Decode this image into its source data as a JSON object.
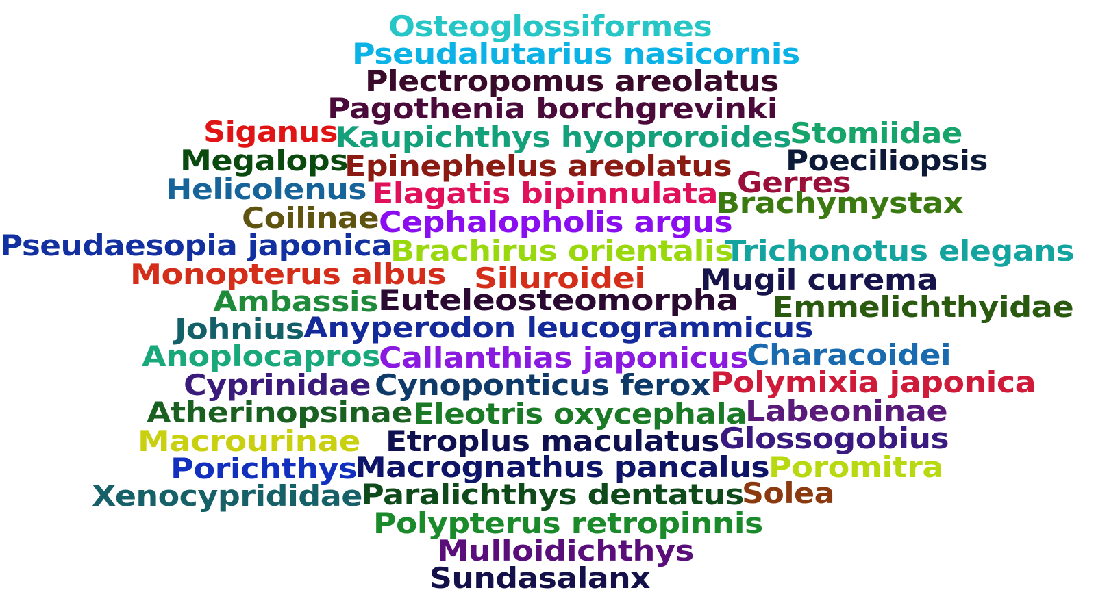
{
  "words": [
    {
      "text": "Osteoglossiformes",
      "color": "#26c6c6"
    },
    {
      "text": "Pseudalutarius nasicornis",
      "color": "#0bb2e6"
    },
    {
      "text": "Plectropomus areolatus",
      "color": "#3a0a2a"
    },
    {
      "text": "Pagothenia borchgrevinki",
      "color": "#4a0a3a"
    },
    {
      "text": "Siganus",
      "color": "#e01414"
    },
    {
      "text": "Kaupichthys hyoproroides",
      "color": "#14a07a"
    },
    {
      "text": "Stomiidae",
      "color": "#16a46a"
    },
    {
      "text": "Megalops",
      "color": "#0a4a0e"
    },
    {
      "text": "Epinephelus areolatus",
      "color": "#8a1a12"
    },
    {
      "text": "Poeciliopsis",
      "color": "#0c1a38"
    },
    {
      "text": "Helicolenus",
      "color": "#16649a"
    },
    {
      "text": "Elagatis bipinnulata",
      "color": "#e0105a"
    },
    {
      "text": "Gerres",
      "color": "#9a0f3a"
    },
    {
      "text": "Brachymystax",
      "color": "#3a7a10"
    },
    {
      "text": "Coilinae",
      "color": "#5e5410"
    },
    {
      "text": "Cephalopholis argus",
      "color": "#8a0ef0"
    },
    {
      "text": "Pseudaesopia japonica",
      "color": "#1230a0"
    },
    {
      "text": "Brachirus orientalis",
      "color": "#9ad80e"
    },
    {
      "text": "Trichonotus elegans",
      "color": "#14a4a0"
    },
    {
      "text": "Monopterus albus",
      "color": "#d42e1a"
    },
    {
      "text": "Siluroidei",
      "color": "#d42e1a"
    },
    {
      "text": "Mugil curema",
      "color": "#16144a"
    },
    {
      "text": "Ambassis",
      "color": "#1e8a3a"
    },
    {
      "text": "Euteleosteomorpha",
      "color": "#2a0a30"
    },
    {
      "text": "Emmelichthyidae",
      "color": "#2a5a10"
    },
    {
      "text": "Johnius",
      "color": "#146068"
    },
    {
      "text": "Anyperodon leucogrammicus",
      "color": "#142a9a"
    },
    {
      "text": "Anoplocapros",
      "color": "#18a87a"
    },
    {
      "text": "Callanthias japonicus",
      "color": "#8a1ae0"
    },
    {
      "text": "Characoidei",
      "color": "#1a6ab0"
    },
    {
      "text": "Cyprinidae",
      "color": "#3a1a7a"
    },
    {
      "text": "Cynoponticus ferox",
      "color": "#0e3a6a"
    },
    {
      "text": "Polymixia japonica",
      "color": "#d01a3a"
    },
    {
      "text": "Atherinopsinae",
      "color": "#1a6020"
    },
    {
      "text": "Eleotris oxycephala",
      "color": "#1a7a26"
    },
    {
      "text": "Labeoninae",
      "color": "#5a1a7a"
    },
    {
      "text": "Macrourinae",
      "color": "#c8d010"
    },
    {
      "text": "Etroplus maculatus",
      "color": "#0e1050"
    },
    {
      "text": "Glossogobius",
      "color": "#3a1a80"
    },
    {
      "text": "Porichthys",
      "color": "#1230c0"
    },
    {
      "text": "Macrognathus pancalus",
      "color": "#0e1468"
    },
    {
      "text": "Poromitra",
      "color": "#b8d810"
    },
    {
      "text": "Xenocyprididae",
      "color": "#166068"
    },
    {
      "text": "Paralichthys dentatus",
      "color": "#0e4a1a"
    },
    {
      "text": "Solea",
      "color": "#8a3a0e"
    },
    {
      "text": "Polypterus retropinnis",
      "color": "#1a8a2a"
    },
    {
      "text": "Mulloidichthys",
      "color": "#5a0e7a"
    },
    {
      "text": "Sundasalanx",
      "color": "#14104a"
    }
  ]
}
